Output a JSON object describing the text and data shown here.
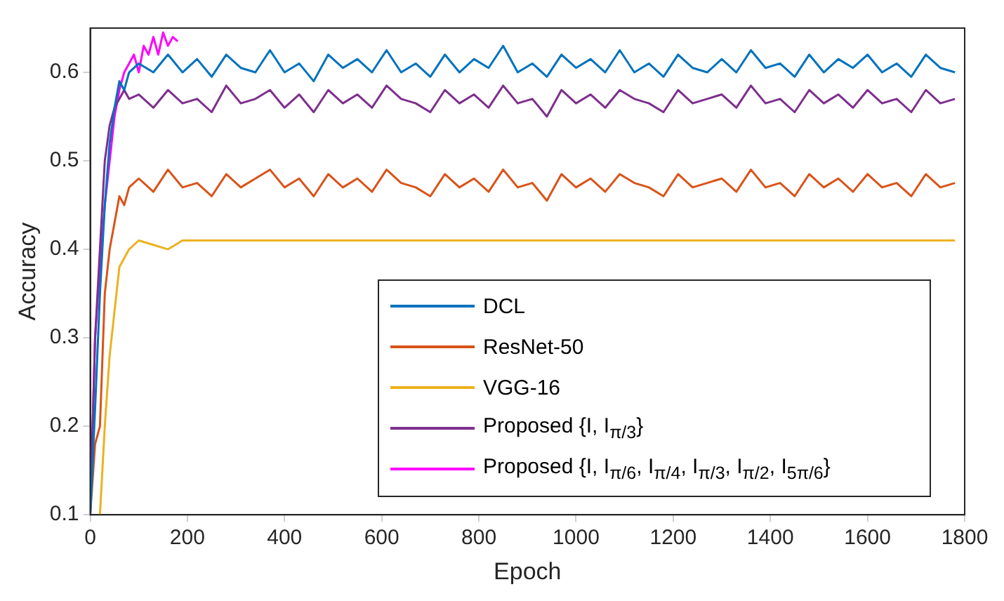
{
  "chart_data": {
    "type": "line",
    "xlabel": "Epoch",
    "ylabel": "Accuracy",
    "xlim": [
      0,
      1800
    ],
    "ylim": [
      0.1,
      0.65
    ],
    "xticks": [
      0,
      200,
      400,
      600,
      800,
      1000,
      1200,
      1400,
      1600,
      1800
    ],
    "yticks": [
      0.1,
      0.2,
      0.3,
      0.4,
      0.5,
      0.6
    ],
    "grid": false,
    "legend": "bottom right",
    "marker": "none",
    "line_style": "solid",
    "x": [
      0,
      10,
      20,
      30,
      40,
      50,
      60,
      70,
      80,
      100,
      130,
      160,
      190,
      220,
      250,
      280,
      310,
      340,
      370,
      400,
      430,
      460,
      490,
      520,
      550,
      580,
      610,
      640,
      670,
      700,
      730,
      760,
      790,
      820,
      850,
      880,
      910,
      940,
      970,
      1000,
      1030,
      1060,
      1090,
      1120,
      1150,
      1180,
      1210,
      1240,
      1270,
      1300,
      1330,
      1360,
      1390,
      1420,
      1450,
      1480,
      1510,
      1540,
      1570,
      1600,
      1630,
      1660,
      1690,
      1720,
      1750,
      1780
    ],
    "series": [
      {
        "name": "DCL",
        "color": "#0072bd",
        "values": [
          0.1,
          0.22,
          0.35,
          0.45,
          0.52,
          0.56,
          0.59,
          0.58,
          0.6,
          0.61,
          0.6,
          0.62,
          0.6,
          0.615,
          0.595,
          0.62,
          0.605,
          0.6,
          0.625,
          0.6,
          0.61,
          0.59,
          0.62,
          0.605,
          0.615,
          0.6,
          0.625,
          0.6,
          0.61,
          0.595,
          0.62,
          0.6,
          0.615,
          0.605,
          0.63,
          0.6,
          0.61,
          0.595,
          0.62,
          0.605,
          0.615,
          0.6,
          0.625,
          0.6,
          0.61,
          0.595,
          0.62,
          0.605,
          0.6,
          0.615,
          0.6,
          0.625,
          0.605,
          0.61,
          0.595,
          0.62,
          0.6,
          0.615,
          0.605,
          0.62,
          0.6,
          0.61,
          0.595,
          0.62,
          0.605,
          0.6
        ]
      },
      {
        "name": "ResNet-50",
        "color": "#d95319",
        "values": [
          0.1,
          0.18,
          0.2,
          0.35,
          0.4,
          0.43,
          0.46,
          0.45,
          0.47,
          0.48,
          0.465,
          0.49,
          0.47,
          0.475,
          0.46,
          0.485,
          0.47,
          0.48,
          0.49,
          0.47,
          0.48,
          0.46,
          0.485,
          0.47,
          0.48,
          0.465,
          0.49,
          0.475,
          0.47,
          0.46,
          0.485,
          0.47,
          0.48,
          0.465,
          0.49,
          0.47,
          0.475,
          0.455,
          0.485,
          0.47,
          0.48,
          0.465,
          0.485,
          0.475,
          0.47,
          0.46,
          0.485,
          0.47,
          0.475,
          0.48,
          0.465,
          0.49,
          0.47,
          0.475,
          0.46,
          0.485,
          0.47,
          0.48,
          0.465,
          0.485,
          0.47,
          0.475,
          0.46,
          0.485,
          0.47,
          0.475
        ]
      },
      {
        "name": "VGG-16",
        "color": "#edb120",
        "values": [
          null,
          null,
          0.1,
          0.2,
          0.28,
          0.33,
          0.38,
          0.39,
          0.4,
          0.41,
          0.405,
          0.4,
          0.41,
          0.41,
          0.41,
          0.41,
          0.41,
          0.41,
          0.41,
          0.41,
          0.41,
          0.41,
          0.41,
          0.41,
          0.41,
          0.41,
          0.41,
          0.41,
          0.41,
          0.41,
          0.41,
          0.41,
          0.41,
          0.41,
          0.41,
          0.41,
          0.41,
          0.41,
          0.41,
          0.41,
          0.41,
          0.41,
          0.41,
          0.41,
          0.41,
          0.41,
          0.41,
          0.41,
          0.41,
          0.41,
          0.41,
          0.41,
          0.41,
          0.41,
          0.41,
          0.41,
          0.41,
          0.41,
          0.41,
          0.41,
          0.41,
          0.41,
          0.41,
          0.41,
          0.41,
          0.41
        ]
      },
      {
        "name": "Proposed {I, I$_{π/3}$}",
        "color": "#7e2f8e",
        "values": [
          0.1,
          0.3,
          0.4,
          0.5,
          0.54,
          0.56,
          0.57,
          0.58,
          0.57,
          0.575,
          0.56,
          0.58,
          0.565,
          0.57,
          0.555,
          0.585,
          0.565,
          0.57,
          0.58,
          0.56,
          0.575,
          0.555,
          0.58,
          0.565,
          0.575,
          0.56,
          0.585,
          0.57,
          0.565,
          0.555,
          0.58,
          0.565,
          0.575,
          0.56,
          0.585,
          0.565,
          0.57,
          0.55,
          0.58,
          0.565,
          0.575,
          0.56,
          0.58,
          0.57,
          0.565,
          0.555,
          0.58,
          0.565,
          0.57,
          0.575,
          0.56,
          0.585,
          0.565,
          0.57,
          0.555,
          0.58,
          0.565,
          0.575,
          0.56,
          0.58,
          0.565,
          0.57,
          0.555,
          0.58,
          0.565,
          0.57
        ]
      },
      {
        "name": "Proposed {I, I$_{π/6}$, I$_{π/4}$, I$_{π/3}$, I$_{π/2}$, I$_{5π/6}$}",
        "color": "#ff00ff",
        "x": [
          0,
          10,
          20,
          30,
          40,
          50,
          60,
          70,
          80,
          90,
          100,
          110,
          120,
          130,
          140,
          150,
          160,
          170,
          180
        ],
        "values": [
          0.1,
          0.3,
          0.38,
          0.45,
          0.5,
          0.55,
          0.58,
          0.6,
          0.61,
          0.62,
          0.6,
          0.63,
          0.62,
          0.64,
          0.62,
          0.645,
          0.63,
          0.64,
          0.635
        ]
      }
    ]
  }
}
